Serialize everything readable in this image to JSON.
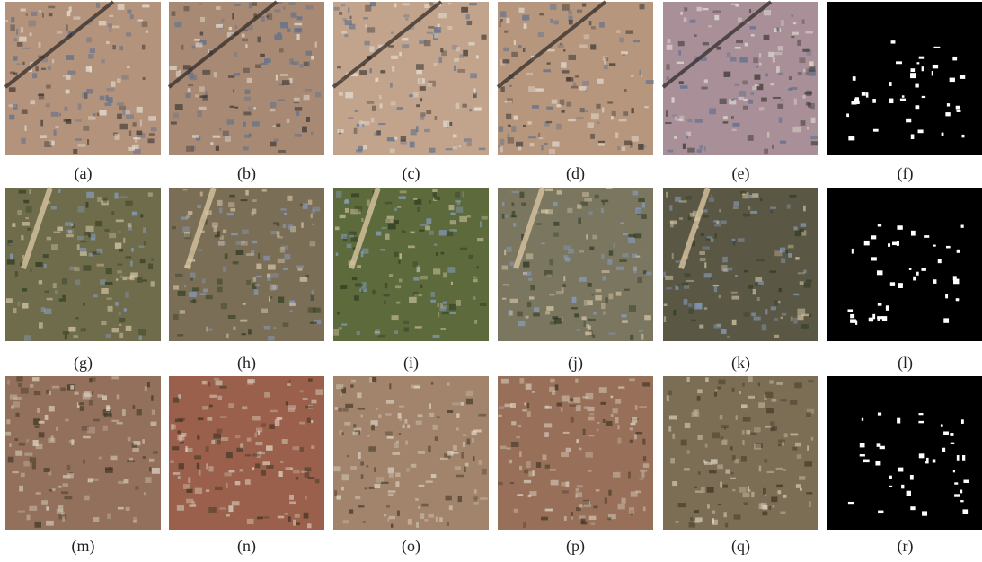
{
  "figure": {
    "labels": [
      "(a)",
      "(b)",
      "(c)",
      "(d)",
      "(e)",
      "(f)",
      "(g)",
      "(h)",
      "(i)",
      "(j)",
      "(k)",
      "(l)",
      "(m)",
      "(n)",
      "(o)",
      "(p)",
      "(q)",
      "(r)"
    ]
  }
}
